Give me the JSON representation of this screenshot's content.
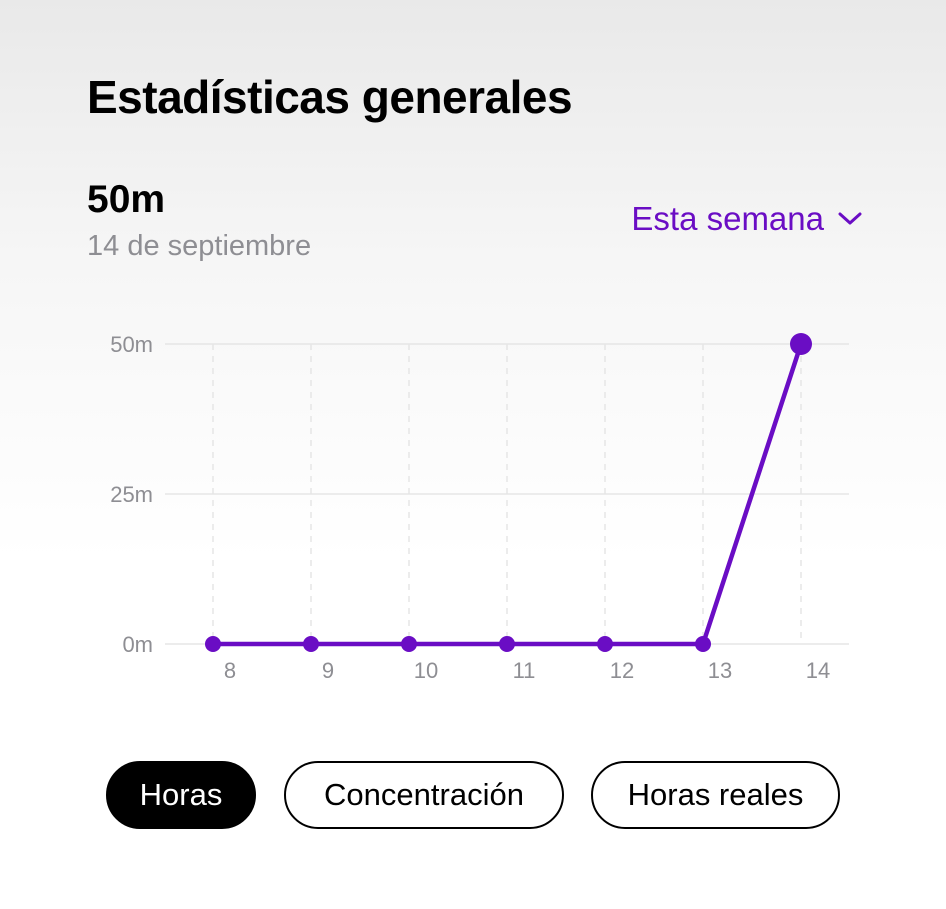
{
  "header": {
    "title": "Estadísticas generales"
  },
  "summary": {
    "value": "50m",
    "date": "14 de septiembre"
  },
  "range_selector": {
    "label": "Esta semana",
    "icon": "chevron-down-icon"
  },
  "tabs": [
    {
      "label": "Horas",
      "active": true
    },
    {
      "label": "Concentración",
      "active": false
    },
    {
      "label": "Horas reales",
      "active": false
    }
  ],
  "colors": {
    "accent": "#6a0dc4",
    "muted_text": "#8e8e93",
    "grid": "#e6e6e6"
  },
  "chart_data": {
    "type": "line",
    "x": [
      "8",
      "9",
      "10",
      "11",
      "12",
      "13",
      "14"
    ],
    "series": [
      {
        "values": [
          0,
          0,
          0,
          0,
          0,
          0,
          50
        ]
      }
    ],
    "y_ticks": [
      {
        "value": 0,
        "label": "0m"
      },
      {
        "value": 25,
        "label": "25m"
      },
      {
        "value": 50,
        "label": "50m"
      }
    ],
    "ylim": [
      0,
      50
    ],
    "ylabel": "",
    "xlabel": "",
    "grid": true,
    "legend": "none",
    "highlight_last_point": true
  }
}
